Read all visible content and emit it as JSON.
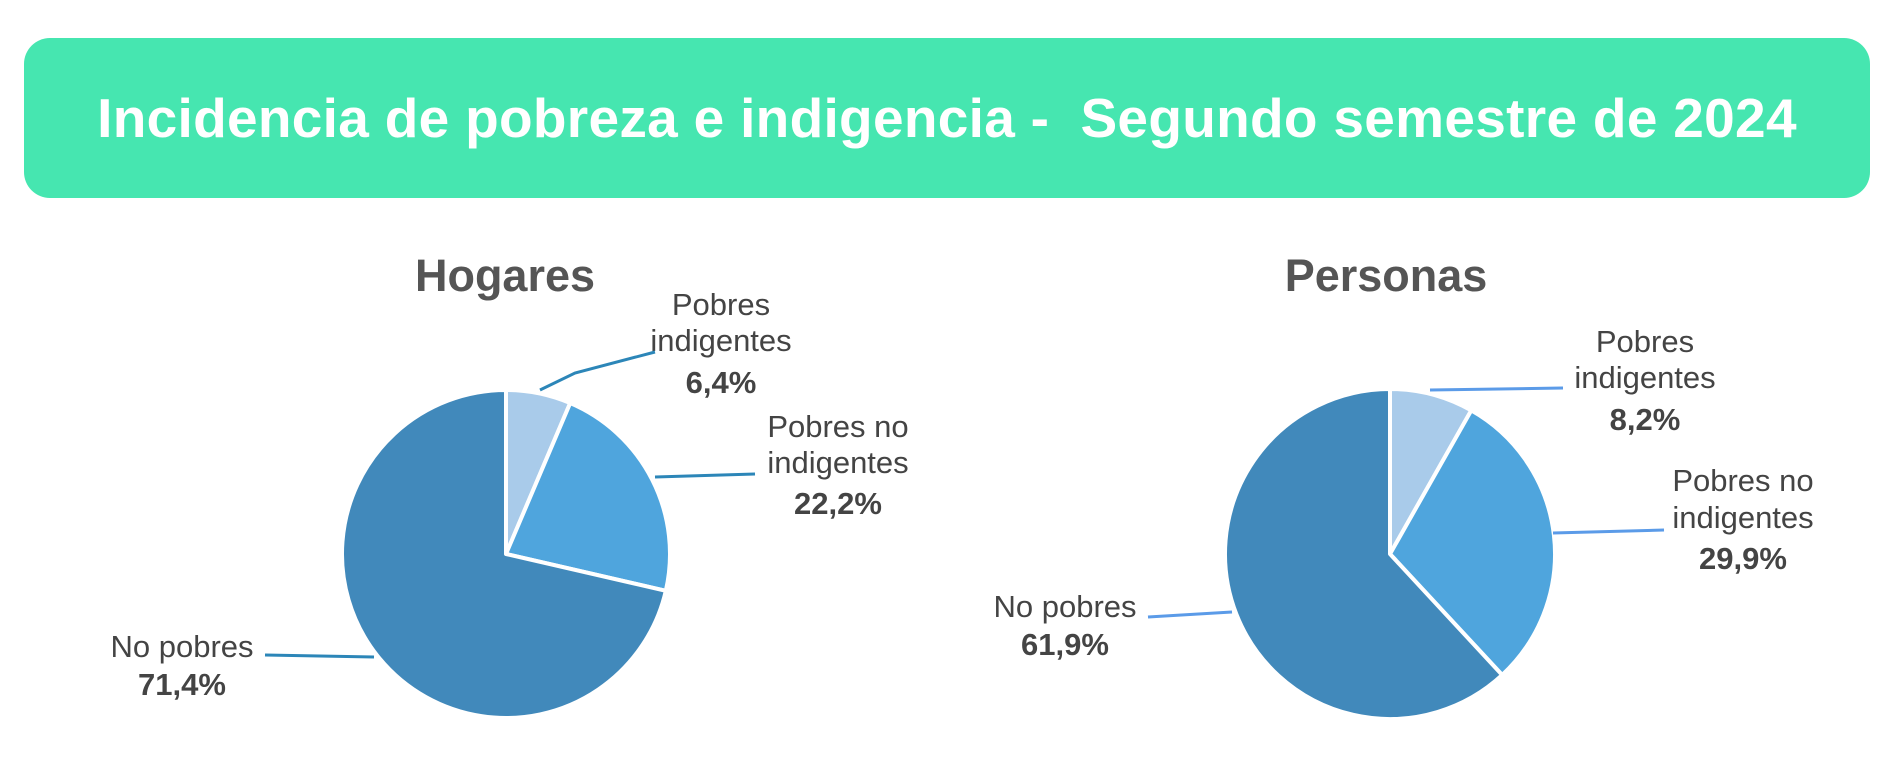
{
  "header": {
    "title": "Incidencia de pobreza e indigencia -  Segundo semestre de 2024"
  },
  "colors": {
    "banner": "#46e6b0",
    "no_pobres": "#4189bb",
    "pobres_no_indigentes": "#4fa5dd",
    "pobres_indigentes": "#a9cbea"
  },
  "chart_data": [
    {
      "type": "pie",
      "title": "Hogares",
      "slices": [
        {
          "name_lines": [
            "Pobres",
            "indigentes"
          ],
          "value": 6.4,
          "value_label": "6,4%",
          "color": "#a9cbea"
        },
        {
          "name_lines": [
            "Pobres no",
            "indigentes"
          ],
          "value": 22.2,
          "value_label": "22,2%",
          "color": "#4fa5dd"
        },
        {
          "name_lines": [
            "No pobres"
          ],
          "value": 71.4,
          "value_label": "71,4%",
          "color": "#4189bb"
        }
      ]
    },
    {
      "type": "pie",
      "title": "Personas",
      "slices": [
        {
          "name_lines": [
            "Pobres",
            "indigentes"
          ],
          "value": 8.2,
          "value_label": "8,2%",
          "color": "#a9cbea"
        },
        {
          "name_lines": [
            "Pobres no",
            "indigentes"
          ],
          "value": 29.9,
          "value_label": "29,9%",
          "color": "#4fa5dd"
        },
        {
          "name_lines": [
            "No pobres"
          ],
          "value": 61.9,
          "value_label": "61,9%",
          "color": "#4189bb"
        }
      ]
    }
  ]
}
